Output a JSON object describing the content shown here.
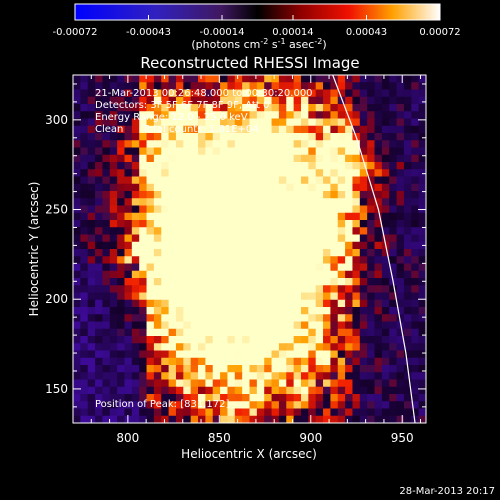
{
  "chart_data": {
    "type": "heatmap",
    "title": "Reconstructed RHESSI Image",
    "xlabel": "Heliocentric X (arcsec)",
    "ylabel": "Heliocentric Y (arcsec)",
    "xlim": [
      770,
      963
    ],
    "ylim": [
      131,
      325
    ],
    "xticks": [
      800,
      850,
      900,
      950
    ],
    "yticks": [
      150,
      200,
      250,
      300
    ],
    "colorbar": {
      "ticks": [
        "-0.00072",
        "-0.00043",
        "-0.00014",
        "0.00014",
        "0.00043",
        "0.00072"
      ],
      "range": [
        -0.00072,
        0.00072
      ],
      "unit_label": "(photons cm",
      "unit_sup1": "-2",
      "unit_mid1": " s",
      "unit_sup2": "-1",
      "unit_mid2": " asec",
      "unit_sup3": "-2",
      "unit_end": ")"
    },
    "annotations": [
      "21-Mar-2013 00:26:48.000 to 00:30:20.000",
      "Detectors: 3F 5F 6F 7F 8F 9F, Att 0",
      "Energy Range: 12.0 - 25.0 keV",
      "Clean      Total counts: 1.81E+04"
    ],
    "peak_label": "Position of Peak: [831,172]",
    "peak": [
      831,
      172
    ],
    "limb_curve": [
      [
        912,
        325
      ],
      [
        925,
        290
      ],
      [
        937,
        250
      ],
      [
        945,
        210
      ],
      [
        952,
        170
      ],
      [
        957,
        131
      ]
    ]
  },
  "timestamp": "28-Mar-2013 20:17",
  "colors": {
    "background": "#000000",
    "text": "#ffffff",
    "limb": "#ffffff"
  }
}
